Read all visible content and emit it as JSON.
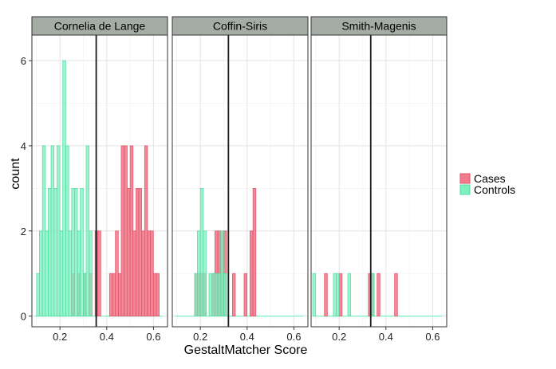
{
  "chart_data": {
    "type": "bar",
    "subtype": "faceted-histogram",
    "xlabel": "GestaltMatcher Score",
    "ylabel": "count",
    "x_ticks": [
      0.2,
      0.4,
      0.6
    ],
    "y_ticks": [
      0,
      2,
      4,
      6
    ],
    "xlim": [
      0.08,
      0.66
    ],
    "ylim": [
      -0.25,
      6.6
    ],
    "bin_width": 0.0125,
    "grid": true,
    "legend": {
      "placement": "right",
      "entries": [
        {
          "name": "Cases",
          "color": "#F27B8C"
        },
        {
          "name": "Controls",
          "color": "#7DF0C0"
        }
      ]
    },
    "colors": {
      "cases_fill": "#F27B8C",
      "cases_stroke": "#E0526A",
      "controls_fill": "#7DF0C0",
      "controls_stroke": "#4DDDA0",
      "strip_bg": "#A5ACA5",
      "panel_border": "#333333",
      "grid": "#E4E4E4"
    },
    "facets": [
      {
        "label": "Cornelia de Lange",
        "threshold": 0.355,
        "series": [
          {
            "name": "Cases",
            "bins": [
              [
                0.25,
                1
              ],
              [
                0.275,
                1
              ],
              [
                0.3,
                1
              ],
              [
                0.325,
                1
              ],
              [
                0.35,
                2
              ],
              [
                0.362,
                2
              ],
              [
                0.412,
                1
              ],
              [
                0.425,
                1
              ],
              [
                0.437,
                2
              ],
              [
                0.45,
                1
              ],
              [
                0.462,
                4
              ],
              [
                0.475,
                4
              ],
              [
                0.487,
                3
              ],
              [
                0.5,
                4
              ],
              [
                0.512,
                2
              ],
              [
                0.525,
                3
              ],
              [
                0.537,
                3
              ],
              [
                0.55,
                2
              ],
              [
                0.562,
                4
              ],
              [
                0.575,
                2
              ],
              [
                0.587,
                2
              ],
              [
                0.6,
                1
              ],
              [
                0.612,
                1
              ]
            ]
          },
          {
            "name": "Controls",
            "bins": [
              [
                0.1,
                1
              ],
              [
                0.112,
                2
              ],
              [
                0.125,
                4
              ],
              [
                0.137,
                2
              ],
              [
                0.15,
                3
              ],
              [
                0.162,
                4
              ],
              [
                0.175,
                3
              ],
              [
                0.187,
                4
              ],
              [
                0.2,
                2
              ],
              [
                0.212,
                6
              ],
              [
                0.225,
                4
              ],
              [
                0.237,
                2
              ],
              [
                0.25,
                3
              ],
              [
                0.262,
                3
              ],
              [
                0.275,
                2
              ],
              [
                0.287,
                3
              ],
              [
                0.3,
                1
              ],
              [
                0.312,
                4
              ],
              [
                0.325,
                2
              ]
            ]
          }
        ]
      },
      {
        "label": "Coffin-Siris",
        "threshold": 0.32,
        "series": [
          {
            "name": "Cases",
            "bins": [
              [
                0.175,
                1
              ],
              [
                0.187,
                1
              ],
              [
                0.2,
                1
              ],
              [
                0.212,
                1
              ],
              [
                0.25,
                1
              ],
              [
                0.262,
                2
              ],
              [
                0.275,
                2
              ],
              [
                0.287,
                2
              ],
              [
                0.3,
                2
              ],
              [
                0.337,
                1
              ],
              [
                0.387,
                1
              ],
              [
                0.412,
                2
              ],
              [
                0.425,
                3
              ]
            ]
          },
          {
            "name": "Controls",
            "bins": [
              [
                0.175,
                1
              ],
              [
                0.187,
                2
              ],
              [
                0.2,
                3
              ],
              [
                0.212,
                2
              ],
              [
                0.237,
                1
              ],
              [
                0.25,
                1
              ],
              [
                0.262,
                1
              ],
              [
                0.275,
                1
              ],
              [
                0.287,
                2
              ],
              [
                0.3,
                1
              ]
            ]
          }
        ]
      },
      {
        "label": "Smith-Magenis",
        "threshold": 0.335,
        "series": [
          {
            "name": "Cases",
            "bins": [
              [
                0.137,
                1
              ],
              [
                0.2,
                1
              ],
              [
                0.325,
                1
              ],
              [
                0.337,
                1
              ],
              [
                0.362,
                1
              ],
              [
                0.437,
                1
              ]
            ]
          },
          {
            "name": "Controls",
            "bins": [
              [
                0.087,
                1
              ],
              [
                0.175,
                1
              ],
              [
                0.187,
                1
              ],
              [
                0.237,
                1
              ],
              [
                0.337,
                1
              ]
            ]
          }
        ]
      }
    ]
  }
}
